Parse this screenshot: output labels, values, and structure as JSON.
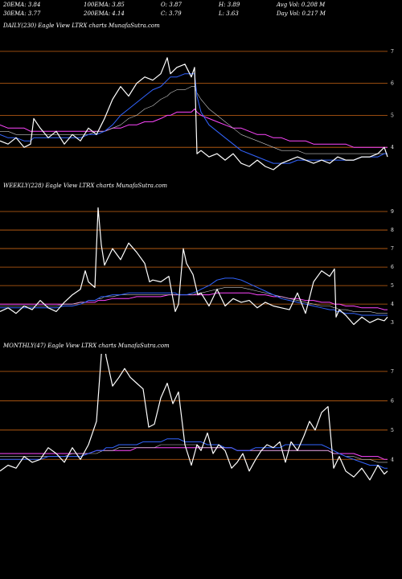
{
  "header": {
    "row1": [
      {
        "label": "20EMA:",
        "value": "3.84"
      },
      {
        "label": "100EMA:",
        "value": "3.85"
      },
      {
        "label": "O:",
        "value": "3.87"
      },
      {
        "label": "H:",
        "value": "3.89"
      },
      {
        "label": "Avg Vol:",
        "value": "0.208  M"
      }
    ],
    "row2": [
      {
        "label": "30EMA:",
        "value": "3.77"
      },
      {
        "label": "200EMA:",
        "value": "4.14"
      },
      {
        "label": "C:",
        "value": "3.79"
      },
      {
        "label": "L:",
        "value": "3.63"
      },
      {
        "label": "Day Vol:",
        "value": "0.217  M"
      }
    ]
  },
  "panels": [
    {
      "id": "daily",
      "label": "DAILY(230) Eagle  View  LTRX  charts MunafaSutra.com"
    },
    {
      "id": "weekly",
      "label": "WEEKLY(228) Eagle  View  LTRX  charts MunafaSutra.com"
    },
    {
      "id": "monthly",
      "label": "MONTHLY(47) Eagle  View  LTRX  charts MunafaSutra.com"
    }
  ],
  "colors": {
    "background": "#000000",
    "price": "#ffffff",
    "level_line": "#c86414",
    "ema_short": "#3264ff",
    "ema_long": "#ff46ff",
    "ema_mid": "#c8c8c8"
  },
  "chart_data": [
    {
      "type": "line",
      "panel": "daily",
      "yticks": [
        4,
        5,
        6,
        7
      ],
      "ylim": [
        3.2,
        7.6
      ],
      "levels": [
        4,
        5,
        6,
        7
      ],
      "x": [
        0,
        10,
        20,
        30,
        38,
        42,
        50,
        60,
        70,
        80,
        90,
        100,
        110,
        120,
        130,
        140,
        150,
        160,
        170,
        180,
        190,
        200,
        208,
        212,
        220,
        230,
        238,
        242,
        245,
        250,
        260,
        270,
        280,
        290,
        300,
        310,
        320,
        330,
        340,
        350,
        360,
        370,
        380,
        390,
        400,
        410,
        420,
        430,
        440,
        450,
        460,
        470,
        478,
        482
      ],
      "series": [
        {
          "role": "price",
          "values": [
            4.2,
            4.1,
            4.3,
            4.0,
            4.1,
            4.9,
            4.6,
            4.3,
            4.5,
            4.1,
            4.4,
            4.2,
            4.6,
            4.4,
            4.9,
            5.5,
            5.9,
            5.6,
            6.0,
            6.2,
            6.1,
            6.3,
            6.8,
            6.3,
            6.5,
            6.6,
            6.2,
            6.5,
            3.8,
            3.9,
            3.7,
            3.8,
            3.6,
            3.8,
            3.5,
            3.4,
            3.6,
            3.4,
            3.3,
            3.5,
            3.6,
            3.7,
            3.6,
            3.5,
            3.6,
            3.5,
            3.7,
            3.6,
            3.6,
            3.7,
            3.7,
            3.8,
            4.0,
            3.7
          ]
        },
        {
          "role": "ema_short",
          "values": [
            4.4,
            4.3,
            4.3,
            4.2,
            4.2,
            4.3,
            4.3,
            4.3,
            4.3,
            4.3,
            4.3,
            4.3,
            4.4,
            4.4,
            4.5,
            4.7,
            5.0,
            5.2,
            5.4,
            5.6,
            5.8,
            5.9,
            6.1,
            6.2,
            6.2,
            6.3,
            6.3,
            6.3,
            5.6,
            5.1,
            4.7,
            4.5,
            4.3,
            4.1,
            3.9,
            3.8,
            3.7,
            3.6,
            3.5,
            3.5,
            3.5,
            3.6,
            3.6,
            3.6,
            3.6,
            3.6,
            3.6,
            3.6,
            3.6,
            3.7,
            3.7,
            3.7,
            3.8,
            3.8
          ]
        },
        {
          "role": "ema_mid",
          "values": [
            4.5,
            4.5,
            4.4,
            4.4,
            4.4,
            4.4,
            4.4,
            4.4,
            4.4,
            4.4,
            4.4,
            4.4,
            4.4,
            4.5,
            4.5,
            4.6,
            4.7,
            4.9,
            5.0,
            5.2,
            5.3,
            5.5,
            5.6,
            5.7,
            5.8,
            5.8,
            5.9,
            5.9,
            5.7,
            5.5,
            5.2,
            5.0,
            4.8,
            4.6,
            4.4,
            4.3,
            4.2,
            4.1,
            4.0,
            3.9,
            3.9,
            3.9,
            3.8,
            3.8,
            3.8,
            3.8,
            3.8,
            3.8,
            3.8,
            3.8,
            3.8,
            3.8,
            3.8,
            3.8
          ]
        },
        {
          "role": "ema_long",
          "values": [
            4.7,
            4.6,
            4.6,
            4.6,
            4.5,
            4.5,
            4.5,
            4.5,
            4.5,
            4.5,
            4.5,
            4.5,
            4.5,
            4.5,
            4.5,
            4.6,
            4.6,
            4.7,
            4.7,
            4.8,
            4.8,
            4.9,
            5.0,
            5.0,
            5.1,
            5.1,
            5.1,
            5.2,
            5.1,
            5.0,
            4.9,
            4.8,
            4.7,
            4.6,
            4.6,
            4.5,
            4.4,
            4.4,
            4.3,
            4.3,
            4.2,
            4.2,
            4.2,
            4.1,
            4.1,
            4.1,
            4.1,
            4.1,
            4.0,
            4.0,
            4.0,
            4.0,
            4.0,
            4.0
          ]
        }
      ]
    },
    {
      "type": "line",
      "panel": "weekly",
      "yticks": [
        3,
        4,
        5,
        6,
        7,
        8,
        9
      ],
      "ylim": [
        2.4,
        10.0
      ],
      "levels": [
        4,
        5,
        6,
        7,
        8,
        9
      ],
      "x": [
        0,
        10,
        20,
        30,
        40,
        50,
        60,
        70,
        80,
        90,
        100,
        106,
        110,
        118,
        122,
        126,
        130,
        140,
        150,
        160,
        170,
        180,
        186,
        190,
        200,
        210,
        218,
        222,
        228,
        232,
        240,
        246,
        250,
        260,
        270,
        280,
        290,
        300,
        310,
        320,
        330,
        340,
        350,
        360,
        370,
        380,
        390,
        400,
        410,
        416,
        418,
        422,
        430,
        440,
        450,
        460,
        470,
        478,
        482
      ],
      "series": [
        {
          "role": "price",
          "values": [
            3.6,
            3.8,
            3.5,
            3.9,
            3.7,
            4.2,
            3.8,
            3.6,
            4.1,
            4.5,
            4.8,
            5.8,
            5.2,
            4.9,
            9.2,
            7.2,
            6.1,
            7.0,
            6.4,
            7.3,
            6.8,
            6.2,
            5.2,
            5.3,
            5.2,
            5.5,
            3.6,
            4.0,
            7.0,
            6.2,
            5.6,
            4.5,
            4.6,
            3.9,
            4.8,
            3.9,
            4.3,
            4.1,
            4.2,
            3.8,
            4.1,
            3.9,
            3.8,
            3.7,
            4.6,
            3.5,
            5.2,
            5.8,
            5.5,
            5.9,
            3.3,
            3.7,
            3.4,
            2.9,
            3.3,
            3.0,
            3.2,
            3.1,
            3.3
          ]
        },
        {
          "role": "ema_short",
          "values": [
            3.8,
            3.8,
            3.8,
            3.8,
            3.8,
            3.8,
            3.8,
            3.8,
            3.9,
            3.9,
            4.0,
            4.1,
            4.2,
            4.2,
            4.3,
            4.4,
            4.4,
            4.5,
            4.5,
            4.6,
            4.6,
            4.6,
            4.6,
            4.6,
            4.6,
            4.6,
            4.6,
            4.5,
            4.5,
            4.5,
            4.6,
            4.7,
            4.8,
            5.0,
            5.3,
            5.4,
            5.4,
            5.3,
            5.1,
            4.9,
            4.7,
            4.5,
            4.3,
            4.2,
            4.1,
            4.0,
            3.9,
            3.8,
            3.7,
            3.7,
            3.6,
            3.6,
            3.5,
            3.5,
            3.4,
            3.4,
            3.4,
            3.4,
            3.4
          ]
        },
        {
          "role": "ema_mid",
          "values": [
            3.9,
            3.9,
            3.9,
            3.9,
            3.9,
            3.9,
            3.9,
            3.9,
            4.0,
            4.0,
            4.1,
            4.1,
            4.2,
            4.2,
            4.3,
            4.3,
            4.4,
            4.4,
            4.5,
            4.5,
            4.5,
            4.5,
            4.5,
            4.5,
            4.5,
            4.5,
            4.5,
            4.5,
            4.5,
            4.5,
            4.5,
            4.6,
            4.6,
            4.7,
            4.8,
            4.9,
            4.9,
            4.9,
            4.8,
            4.7,
            4.6,
            4.5,
            4.4,
            4.3,
            4.2,
            4.1,
            4.0,
            3.9,
            3.9,
            3.8,
            3.8,
            3.7,
            3.7,
            3.6,
            3.6,
            3.6,
            3.5,
            3.5,
            3.5
          ]
        },
        {
          "role": "ema_long",
          "values": [
            4.0,
            4.0,
            4.0,
            4.0,
            4.0,
            4.0,
            4.0,
            4.0,
            4.0,
            4.0,
            4.1,
            4.1,
            4.1,
            4.1,
            4.2,
            4.2,
            4.2,
            4.3,
            4.3,
            4.3,
            4.4,
            4.4,
            4.4,
            4.4,
            4.4,
            4.5,
            4.5,
            4.5,
            4.5,
            4.5,
            4.5,
            4.5,
            4.5,
            4.5,
            4.6,
            4.6,
            4.6,
            4.6,
            4.6,
            4.5,
            4.5,
            4.4,
            4.4,
            4.3,
            4.3,
            4.2,
            4.2,
            4.1,
            4.1,
            4.0,
            4.0,
            4.0,
            3.9,
            3.9,
            3.8,
            3.8,
            3.8,
            3.7,
            3.7
          ]
        }
      ]
    },
    {
      "type": "line",
      "panel": "monthly",
      "yticks": [
        4,
        5,
        6,
        7
      ],
      "ylim": [
        2.8,
        7.6
      ],
      "levels": [
        4,
        5,
        6,
        7
      ],
      "x": [
        0,
        10,
        20,
        30,
        40,
        50,
        60,
        70,
        80,
        90,
        100,
        110,
        120,
        128,
        132,
        140,
        148,
        155,
        162,
        170,
        178,
        185,
        192,
        200,
        208,
        215,
        222,
        230,
        238,
        245,
        250,
        258,
        265,
        272,
        280,
        288,
        295,
        302,
        310,
        318,
        325,
        332,
        340,
        348,
        355,
        362,
        370,
        378,
        385,
        392,
        400,
        408,
        415,
        422,
        430,
        440,
        450,
        460,
        470,
        478,
        482
      ],
      "series": [
        {
          "role": "price",
          "values": [
            3.6,
            3.8,
            3.7,
            4.1,
            3.9,
            4.0,
            4.4,
            4.2,
            3.9,
            4.4,
            4.0,
            4.5,
            5.3,
            8.3,
            7.5,
            6.5,
            6.8,
            7.1,
            6.8,
            6.6,
            6.4,
            5.1,
            5.2,
            6.1,
            6.6,
            5.9,
            6.3,
            4.5,
            3.8,
            4.5,
            4.3,
            4.9,
            4.2,
            4.5,
            4.3,
            3.7,
            3.9,
            4.2,
            3.6,
            4.0,
            4.3,
            4.5,
            4.4,
            4.6,
            3.9,
            4.6,
            4.3,
            4.8,
            5.3,
            5.0,
            5.6,
            5.8,
            3.7,
            4.1,
            3.6,
            3.4,
            3.7,
            3.3,
            3.8,
            3.5,
            3.6
          ]
        },
        {
          "role": "ema_short",
          "values": [
            4.0,
            4.0,
            4.0,
            4.0,
            4.0,
            4.0,
            4.1,
            4.1,
            4.1,
            4.1,
            4.1,
            4.2,
            4.3,
            4.3,
            4.4,
            4.4,
            4.5,
            4.5,
            4.5,
            4.5,
            4.6,
            4.6,
            4.6,
            4.6,
            4.7,
            4.7,
            4.7,
            4.6,
            4.6,
            4.6,
            4.6,
            4.5,
            4.5,
            4.5,
            4.4,
            4.4,
            4.3,
            4.3,
            4.3,
            4.4,
            4.4,
            4.4,
            4.4,
            4.4,
            4.5,
            4.5,
            4.5,
            4.5,
            4.5,
            4.5,
            4.5,
            4.4,
            4.3,
            4.2,
            4.1,
            4.0,
            3.9,
            3.8,
            3.8,
            3.7,
            3.7
          ]
        },
        {
          "role": "ema_mid",
          "values": [
            4.1,
            4.1,
            4.1,
            4.1,
            4.1,
            4.1,
            4.1,
            4.1,
            4.1,
            4.2,
            4.2,
            4.2,
            4.2,
            4.3,
            4.3,
            4.3,
            4.4,
            4.4,
            4.4,
            4.4,
            4.4,
            4.4,
            4.4,
            4.5,
            4.5,
            4.5,
            4.5,
            4.5,
            4.5,
            4.5,
            4.4,
            4.4,
            4.4,
            4.4,
            4.4,
            4.4,
            4.3,
            4.3,
            4.3,
            4.3,
            4.3,
            4.3,
            4.3,
            4.3,
            4.3,
            4.3,
            4.3,
            4.3,
            4.3,
            4.3,
            4.3,
            4.3,
            4.2,
            4.2,
            4.1,
            4.1,
            4.0,
            4.0,
            3.9,
            3.9,
            3.9
          ]
        },
        {
          "role": "ema_long",
          "values": [
            4.2,
            4.2,
            4.2,
            4.2,
            4.2,
            4.2,
            4.2,
            4.2,
            4.2,
            4.2,
            4.2,
            4.2,
            4.3,
            4.3,
            4.3,
            4.3,
            4.3,
            4.3,
            4.3,
            4.4,
            4.4,
            4.4,
            4.4,
            4.4,
            4.4,
            4.4,
            4.4,
            4.4,
            4.4,
            4.4,
            4.4,
            4.4,
            4.4,
            4.4,
            4.4,
            4.4,
            4.3,
            4.3,
            4.3,
            4.3,
            4.3,
            4.3,
            4.3,
            4.3,
            4.3,
            4.3,
            4.3,
            4.3,
            4.3,
            4.3,
            4.3,
            4.3,
            4.2,
            4.2,
            4.2,
            4.2,
            4.1,
            4.1,
            4.1,
            4.0,
            4.0
          ]
        }
      ]
    }
  ]
}
